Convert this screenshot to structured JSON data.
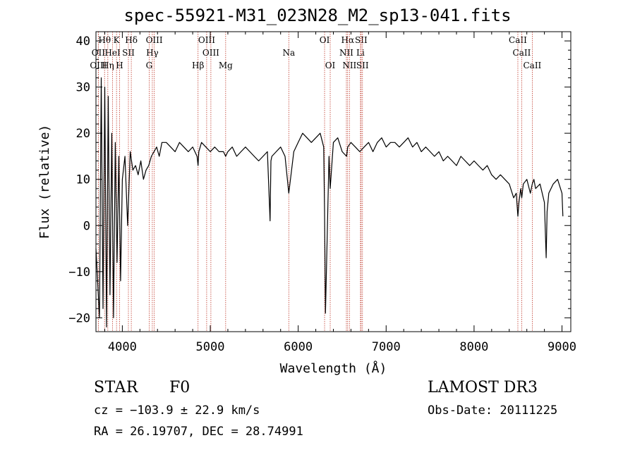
{
  "title": "spec-55921-M31_023N28_M2_sp13-041.fits",
  "info": {
    "object_class": "STAR",
    "subclass": "F0",
    "survey": "LAMOST DR3",
    "cz_line": "cz = −103.9 ± 22.9 km/s",
    "obs_date_line": "Obs-Date: 20111225",
    "radec_line": "RA =  26.19707, DEC =  28.74991"
  },
  "colors": {
    "line": "#000000",
    "marker": "#c0392b",
    "background": "#ffffff"
  },
  "chart_data": {
    "type": "line",
    "title": "spec-55921-M31_023N28_M2_sp13-041.fits",
    "xlabel": "Wavelength (Å)",
    "ylabel": "Flux (relative)",
    "xlim": [
      3700,
      9100
    ],
    "ylim": [
      -23,
      42
    ],
    "xticks": [
      4000,
      5000,
      6000,
      7000,
      8000,
      9000
    ],
    "yticks": [
      -20,
      -10,
      0,
      10,
      20,
      30,
      40
    ],
    "line_markers": [
      {
        "label": "Hθ",
        "wavelength": 3798,
        "row": 0
      },
      {
        "label": "K",
        "wavelength": 3934,
        "row": 0
      },
      {
        "label": "Hδ",
        "wavelength": 4102,
        "row": 0
      },
      {
        "label": "OIII",
        "wavelength": 4363,
        "row": 0
      },
      {
        "label": "OIII",
        "wavelength": 4959,
        "row": 0
      },
      {
        "label": "OI",
        "wavelength": 6300,
        "row": 0
      },
      {
        "label": "Hα",
        "wavelength": 6563,
        "row": 0
      },
      {
        "label": "SII",
        "wavelength": 6716,
        "row": 0
      },
      {
        "label": "CaII",
        "wavelength": 8498,
        "row": 0
      },
      {
        "label": "OII",
        "wavelength": 3727,
        "row": 1
      },
      {
        "label": "HeI",
        "wavelength": 3889,
        "row": 1
      },
      {
        "label": "SII",
        "wavelength": 4069,
        "row": 1
      },
      {
        "label": "Hγ",
        "wavelength": 4341,
        "row": 1
      },
      {
        "label": "OIII",
        "wavelength": 5007,
        "row": 1
      },
      {
        "label": "Na",
        "wavelength": 5893,
        "row": 1
      },
      {
        "label": "NII",
        "wavelength": 6548,
        "row": 1
      },
      {
        "label": "Li",
        "wavelength": 6708,
        "row": 1
      },
      {
        "label": "CaII",
        "wavelength": 8542,
        "row": 1
      },
      {
        "label": "OIII",
        "wavelength": 3727,
        "row": 2
      },
      {
        "label": "Hη",
        "wavelength": 3835,
        "row": 2
      },
      {
        "label": "H",
        "wavelength": 3969,
        "row": 2
      },
      {
        "label": "G",
        "wavelength": 4305,
        "row": 2
      },
      {
        "label": "Hβ",
        "wavelength": 4861,
        "row": 2
      },
      {
        "label": "Mg",
        "wavelength": 5175,
        "row": 2
      },
      {
        "label": "OI",
        "wavelength": 6364,
        "row": 2
      },
      {
        "label": "NII",
        "wavelength": 6583,
        "row": 2
      },
      {
        "label": "SII",
        "wavelength": 6731,
        "row": 2
      },
      {
        "label": "CaII",
        "wavelength": 8662,
        "row": 2
      }
    ],
    "series": [
      {
        "name": "flux",
        "x": [
          3700,
          3740,
          3760,
          3780,
          3800,
          3820,
          3840,
          3860,
          3880,
          3900,
          3920,
          3940,
          3960,
          3980,
          4000,
          4030,
          4060,
          4090,
          4120,
          4150,
          4180,
          4210,
          4240,
          4270,
          4300,
          4330,
          4360,
          4390,
          4420,
          4450,
          4500,
          4550,
          4600,
          4650,
          4700,
          4750,
          4800,
          4850,
          4861,
          4870,
          4900,
          4950,
          5000,
          5050,
          5100,
          5150,
          5175,
          5200,
          5250,
          5300,
          5350,
          5400,
          5450,
          5500,
          5550,
          5600,
          5650,
          5680,
          5690,
          5700,
          5750,
          5800,
          5850,
          5893,
          5950,
          6000,
          6050,
          6100,
          6150,
          6200,
          6250,
          6290,
          6300,
          6310,
          6350,
          6364,
          6400,
          6450,
          6500,
          6550,
          6563,
          6600,
          6650,
          6700,
          6750,
          6800,
          6850,
          6900,
          6950,
          7000,
          7050,
          7100,
          7150,
          7200,
          7250,
          7300,
          7350,
          7400,
          7450,
          7500,
          7550,
          7600,
          7650,
          7700,
          7750,
          7800,
          7850,
          7900,
          7950,
          8000,
          8050,
          8100,
          8150,
          8200,
          8250,
          8300,
          8350,
          8400,
          8450,
          8480,
          8498,
          8510,
          8530,
          8542,
          8560,
          8600,
          8640,
          8662,
          8680,
          8700,
          8750,
          8800,
          8820,
          8830,
          8850,
          8900,
          8950,
          9000,
          9010
        ],
        "y": [
          -5,
          -20,
          32,
          -18,
          30,
          -22,
          28,
          -15,
          20,
          -20,
          18,
          -8,
          15,
          -12,
          10,
          15,
          0,
          16,
          12,
          13,
          11,
          14,
          10,
          12,
          13,
          15,
          16,
          17,
          15,
          18,
          18,
          17,
          16,
          18,
          17,
          16,
          17,
          15,
          13,
          16,
          18,
          17,
          16,
          17,
          16,
          16,
          15,
          16,
          17,
          15,
          16,
          17,
          16,
          15,
          14,
          15,
          16,
          1,
          14,
          15,
          16,
          17,
          15,
          7,
          16,
          18,
          20,
          19,
          18,
          19,
          20,
          17,
          3,
          -19,
          15,
          8,
          18,
          19,
          16,
          15,
          17,
          18,
          17,
          16,
          17,
          18,
          16,
          18,
          19,
          17,
          18,
          18,
          17,
          18,
          19,
          17,
          18,
          16,
          17,
          16,
          15,
          16,
          14,
          15,
          14,
          13,
          15,
          14,
          13,
          14,
          13,
          12,
          13,
          11,
          10,
          11,
          10,
          9,
          6,
          7,
          2,
          5,
          8,
          6,
          9,
          10,
          7,
          9,
          10,
          8,
          9,
          5,
          -7,
          3,
          7,
          9,
          10,
          7,
          2
        ]
      }
    ]
  }
}
